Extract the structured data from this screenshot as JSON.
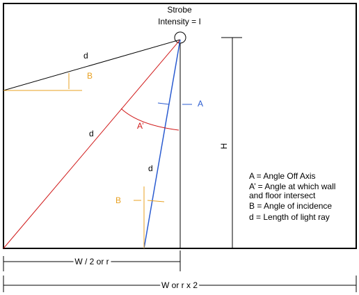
{
  "source": {
    "title": "Strobe",
    "subtitle": "Intensity = I"
  },
  "labels": {
    "d_top": "d",
    "d_middle": "d",
    "d_bottom": "d",
    "b_top": "B",
    "b_bottom": "B",
    "a": "A",
    "a_prime": "A’",
    "h": "H"
  },
  "legend": [
    "A = Angle Off Axis",
    "A’ = Angle at which wall",
    "and floor intersect",
    "B = Angle of incidence",
    "d = Length of light ray"
  ],
  "dimensions": {
    "half_width": "W / 2 or r",
    "full_width": "W or r x 2"
  }
}
